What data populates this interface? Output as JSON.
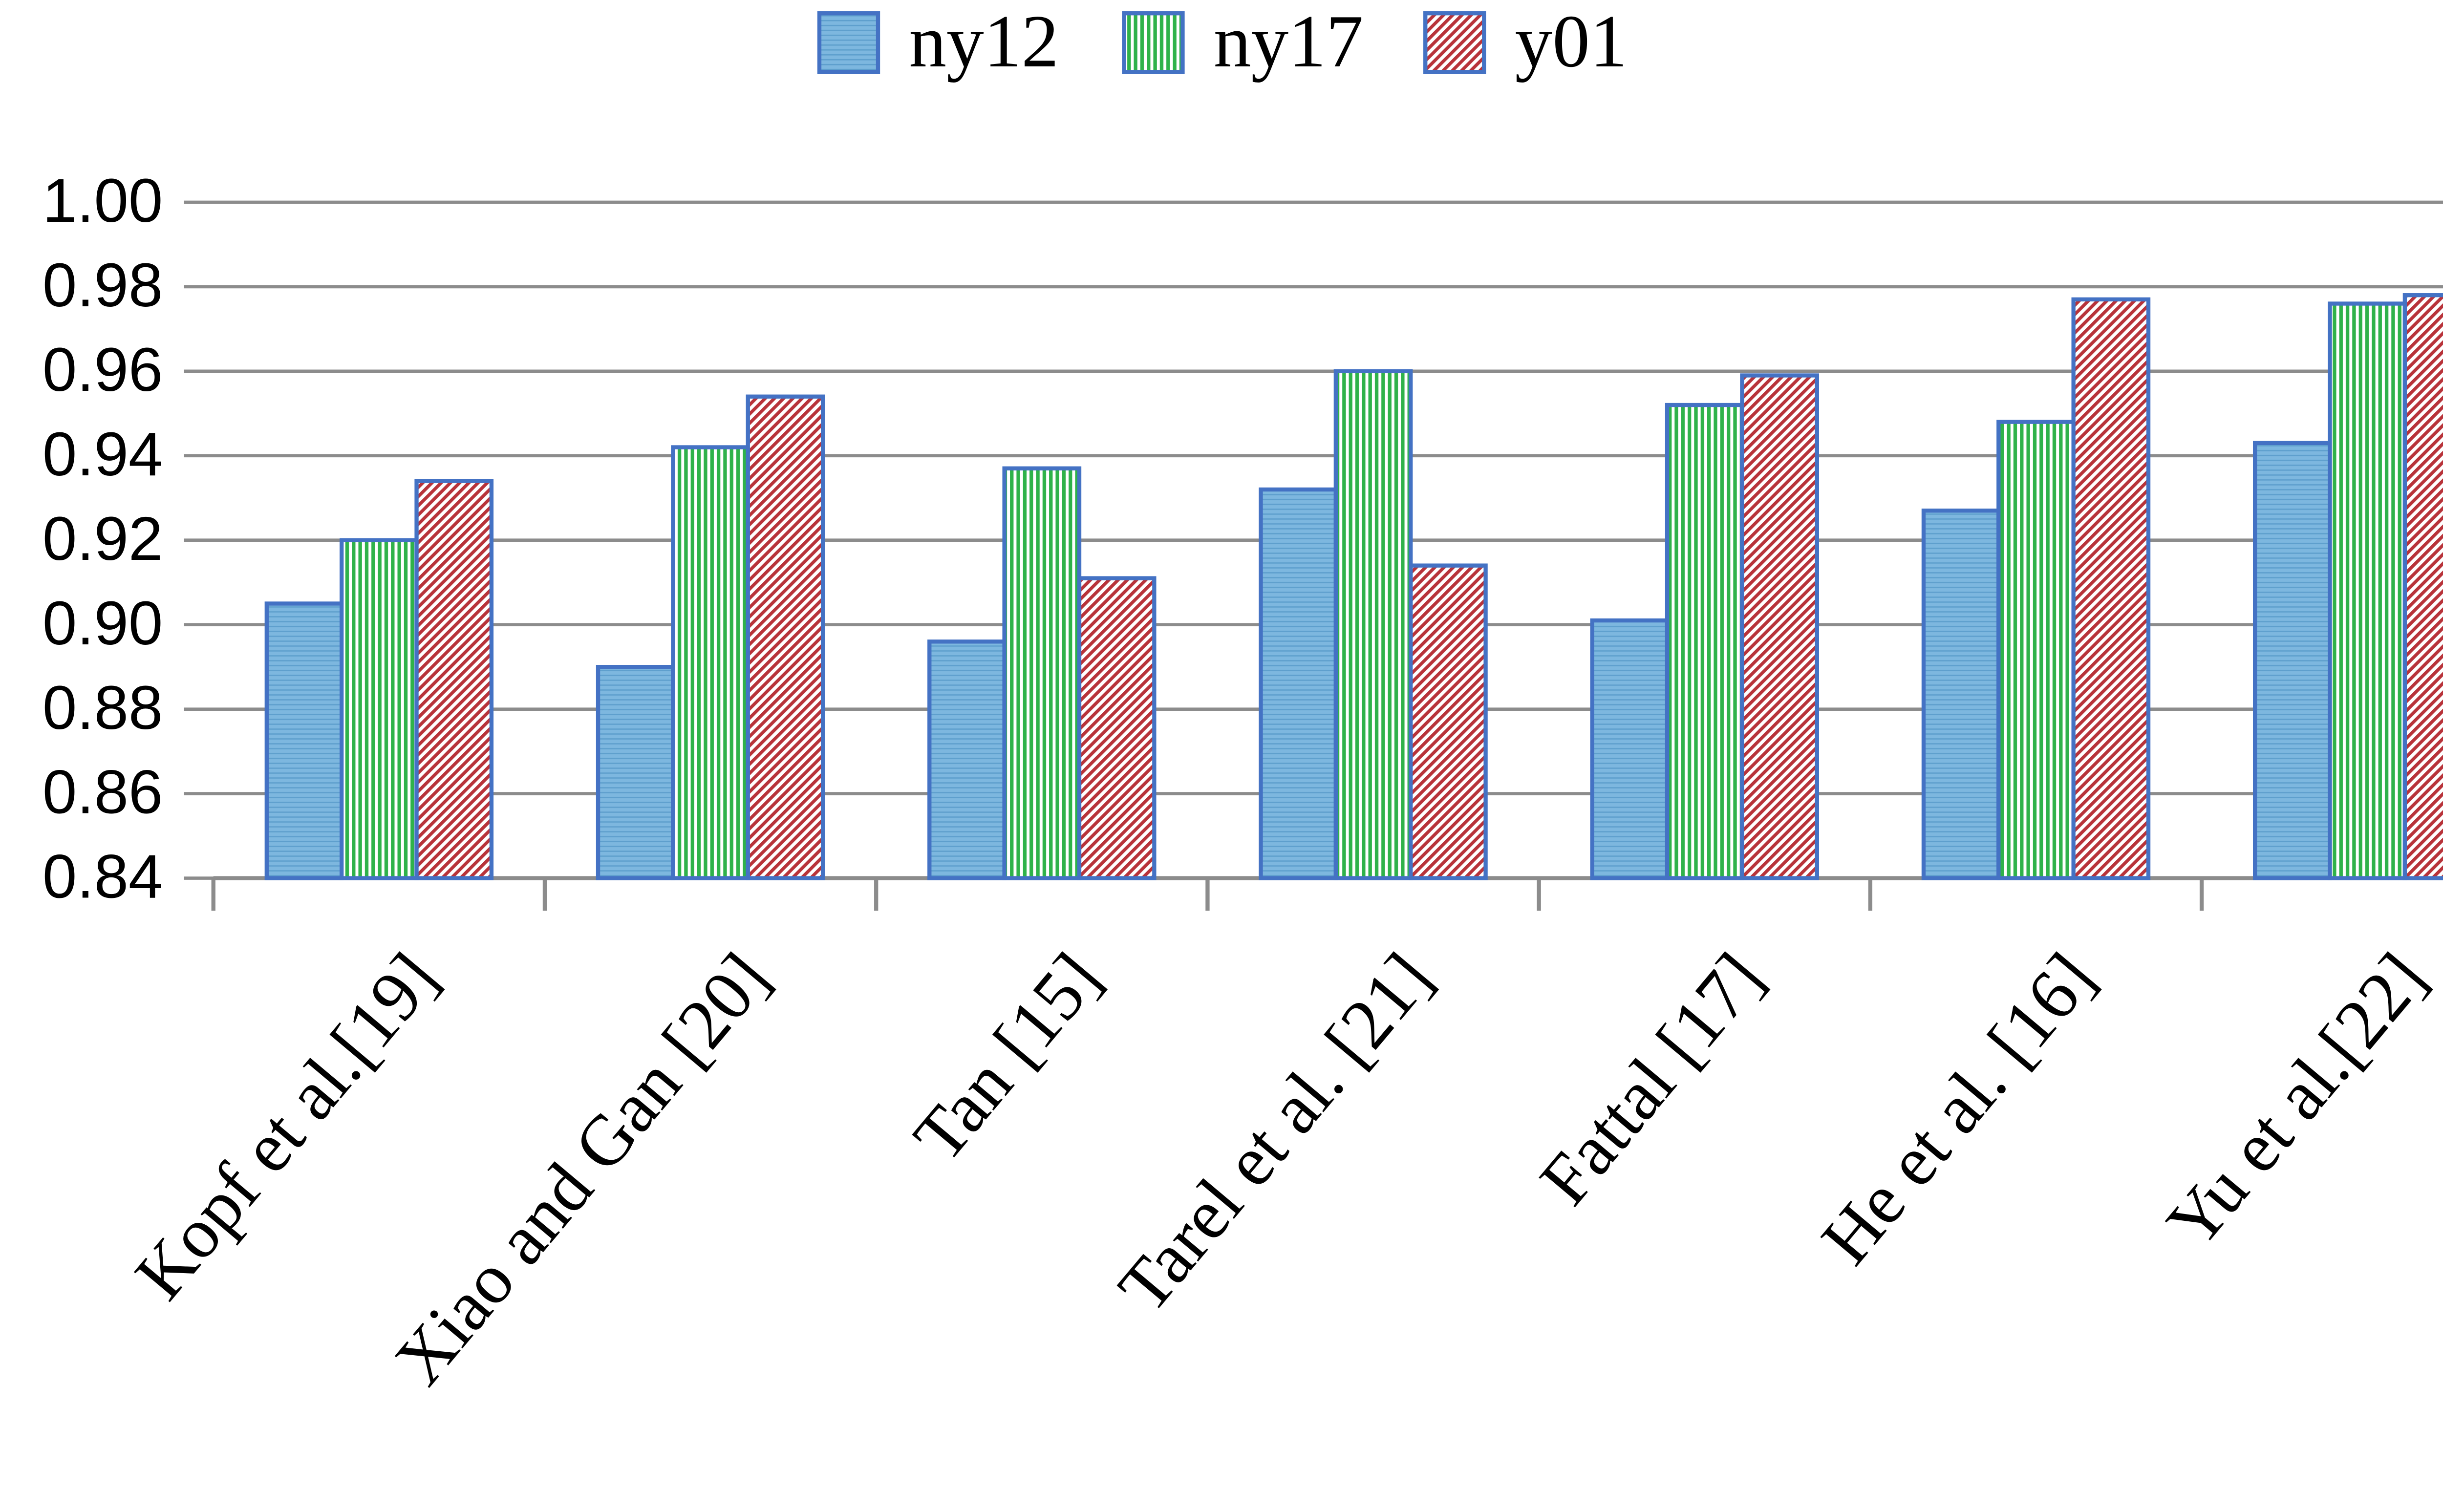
{
  "chart_data": {
    "type": "bar",
    "categories": [
      "Kopf et al.[19]",
      "Xiao and Gan [20]",
      "Tan [15]",
      "Tarel et al. [21]",
      "Fattal [17]",
      "He et al. [16]",
      "Yu et al.[22]"
    ],
    "series": [
      {
        "name": "ny12",
        "color": "#7db7df",
        "values": [
          0.905,
          0.89,
          0.896,
          0.932,
          0.901,
          0.927,
          0.943
        ]
      },
      {
        "name": "ny17",
        "color": "#2fb24a",
        "values": [
          0.92,
          0.942,
          0.937,
          0.96,
          0.952,
          0.948,
          0.976
        ]
      },
      {
        "name": "y01",
        "color": "#b8333a",
        "values": [
          0.934,
          0.954,
          0.911,
          0.914,
          0.959,
          0.977,
          0.978
        ]
      }
    ],
    "ylim": [
      0.84,
      1.0
    ],
    "yticks": [
      0.84,
      0.86,
      0.88,
      {
        "value": 0.9,
        "label": "0.90"
      },
      0.92,
      0.94,
      0.96,
      0.98,
      {
        "value": 1.0,
        "label": "1.00"
      }
    ],
    "grid": true,
    "legend": "top"
  }
}
